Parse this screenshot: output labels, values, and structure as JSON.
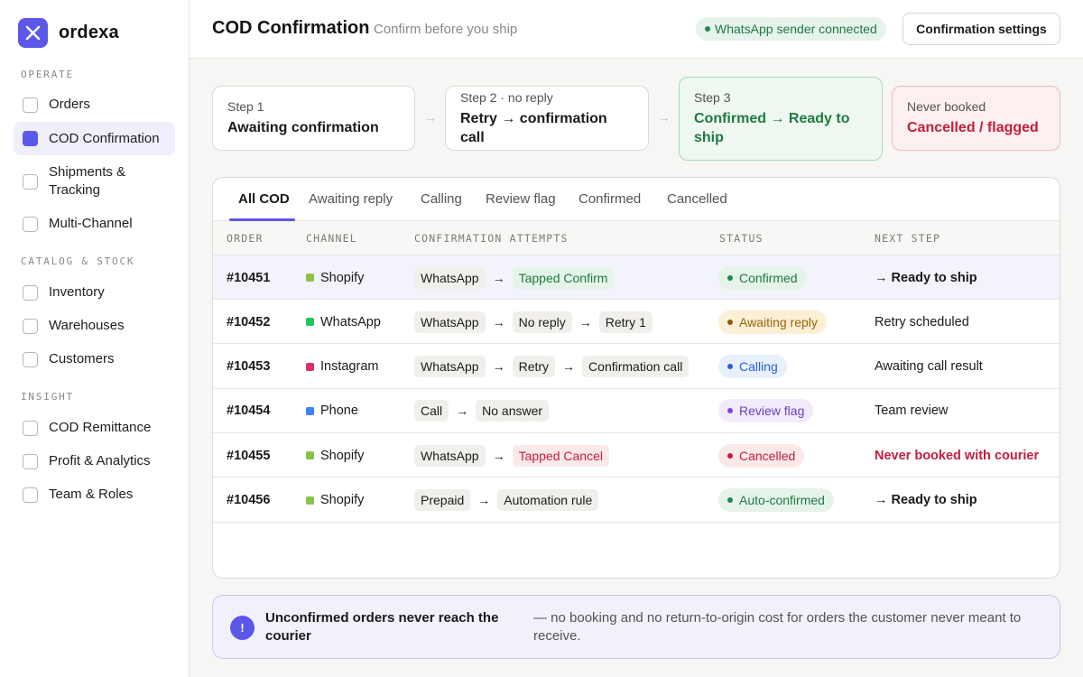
{
  "brand": {
    "name": "ordexa",
    "accent": "#5b57e8"
  },
  "sidebar": {
    "sections": [
      {
        "label": "OPERATE",
        "items": [
          {
            "label": "Orders",
            "active": false
          },
          {
            "label": "COD Confirmation",
            "active": true
          },
          {
            "label": "Shipments & Tracking",
            "active": false
          },
          {
            "label": "Multi-Channel",
            "active": false
          }
        ]
      },
      {
        "label": "CATALOG & STOCK",
        "items": [
          {
            "label": "Inventory",
            "active": false
          },
          {
            "label": "Warehouses",
            "active": false
          },
          {
            "label": "Customers",
            "active": false
          }
        ]
      },
      {
        "label": "INSIGHT",
        "items": [
          {
            "label": "COD Remittance",
            "active": false
          },
          {
            "label": "Profit & Analytics",
            "active": false
          },
          {
            "label": "Team & Roles",
            "active": false
          }
        ]
      }
    ]
  },
  "header": {
    "title": "COD Confirmation",
    "subtitle": "Confirm before you ship",
    "status_badge": "WhatsApp sender connected",
    "settings_button": "Confirmation settings"
  },
  "steps": [
    {
      "kicker": "Step 1",
      "value": "Awaiting confirmation",
      "tone": "neutral"
    },
    {
      "kicker": "Step 2 · no reply",
      "value": "Retry → confirmation call",
      "tone": "neutral"
    },
    {
      "kicker": "Step 3",
      "value": "Confirmed → Ready to ship",
      "tone": "ok"
    },
    {
      "kicker": "Never booked",
      "value": "Cancelled / flagged",
      "tone": "bad"
    }
  ],
  "tabs": [
    {
      "label": "All COD",
      "active": true
    },
    {
      "label": "Awaiting reply",
      "active": false
    },
    {
      "label": "Calling",
      "active": false
    },
    {
      "label": "Review flag",
      "active": false
    },
    {
      "label": "Confirmed",
      "active": false
    },
    {
      "label": "Cancelled",
      "active": false
    }
  ],
  "table": {
    "columns": [
      "ORDER",
      "CHANNEL",
      "CONFIRMATION ATTEMPTS",
      "STATUS",
      "NEXT STEP"
    ],
    "rows": [
      {
        "order": "#10451",
        "channel": "Shopify",
        "channel_color": "#8bc34a",
        "attempts": [
          {
            "text": "WhatsApp",
            "tone": "n"
          },
          {
            "text": "Tapped Confirm",
            "tone": "g"
          }
        ],
        "status": "Confirmed",
        "status_tone": "green",
        "next": "→ Ready to ship",
        "next_style": "bold",
        "highlight": true
      },
      {
        "order": "#10452",
        "channel": "WhatsApp",
        "channel_color": "#22c55e",
        "attempts": [
          {
            "text": "WhatsApp",
            "tone": "n"
          },
          {
            "text": "No reply",
            "tone": "n"
          },
          {
            "text": "Retry 1",
            "tone": "n"
          }
        ],
        "status": "Awaiting reply",
        "status_tone": "amber",
        "next": "Retry scheduled",
        "next_style": "plain",
        "highlight": false
      },
      {
        "order": "#10453",
        "channel": "Instagram",
        "channel_color": "#d6336c",
        "attempts": [
          {
            "text": "WhatsApp",
            "tone": "n"
          },
          {
            "text": "Retry",
            "tone": "n"
          },
          {
            "text": "Confirmation call",
            "tone": "n"
          }
        ],
        "status": "Calling",
        "status_tone": "blue",
        "next": "Awaiting call result",
        "next_style": "plain",
        "highlight": false
      },
      {
        "order": "#10454",
        "channel": "Phone",
        "channel_color": "#3b82f6",
        "attempts": [
          {
            "text": "Call",
            "tone": "n"
          },
          {
            "text": "No answer",
            "tone": "n"
          }
        ],
        "status": "Review flag",
        "status_tone": "purple",
        "next": "Team review",
        "next_style": "plain",
        "highlight": false
      },
      {
        "order": "#10455",
        "channel": "Shopify",
        "channel_color": "#8bc34a",
        "attempts": [
          {
            "text": "WhatsApp",
            "tone": "n"
          },
          {
            "text": "Tapped Cancel",
            "tone": "r"
          }
        ],
        "status": "Cancelled",
        "status_tone": "red",
        "next": "Never booked with courier",
        "next_style": "red",
        "highlight": false
      },
      {
        "order": "#10456",
        "channel": "Shopify",
        "channel_color": "#8bc34a",
        "attempts": [
          {
            "text": "Prepaid",
            "tone": "n"
          },
          {
            "text": "Automation rule",
            "tone": "n"
          }
        ],
        "status": "Auto-confirmed",
        "status_tone": "green",
        "next": "→ Ready to ship",
        "next_style": "bold",
        "highlight": false
      }
    ],
    "arrow": "→"
  },
  "status_colors": {
    "green": {
      "bg": "#e5f3e9",
      "fg": "#1f7a43",
      "dot": "#1f8a4a"
    },
    "amber": {
      "bg": "#fbefd6",
      "fg": "#9a6408",
      "dot": "#8a5a10"
    },
    "blue": {
      "bg": "#e8f0fd",
      "fg": "#2a5fd6",
      "dot": "#2a5fd6"
    },
    "purple": {
      "bg": "#f1ebfb",
      "fg": "#6f3fc4",
      "dot": "#7a45d8"
    },
    "red": {
      "bg": "#fbe9ea",
      "fg": "#c51d3b",
      "dot": "#c51d3b"
    }
  },
  "banner": {
    "icon": "!",
    "title": "Unconfirmed orders never reach the courier",
    "text": "— no booking and no return-to-origin cost for orders the customer never meant to receive."
  }
}
